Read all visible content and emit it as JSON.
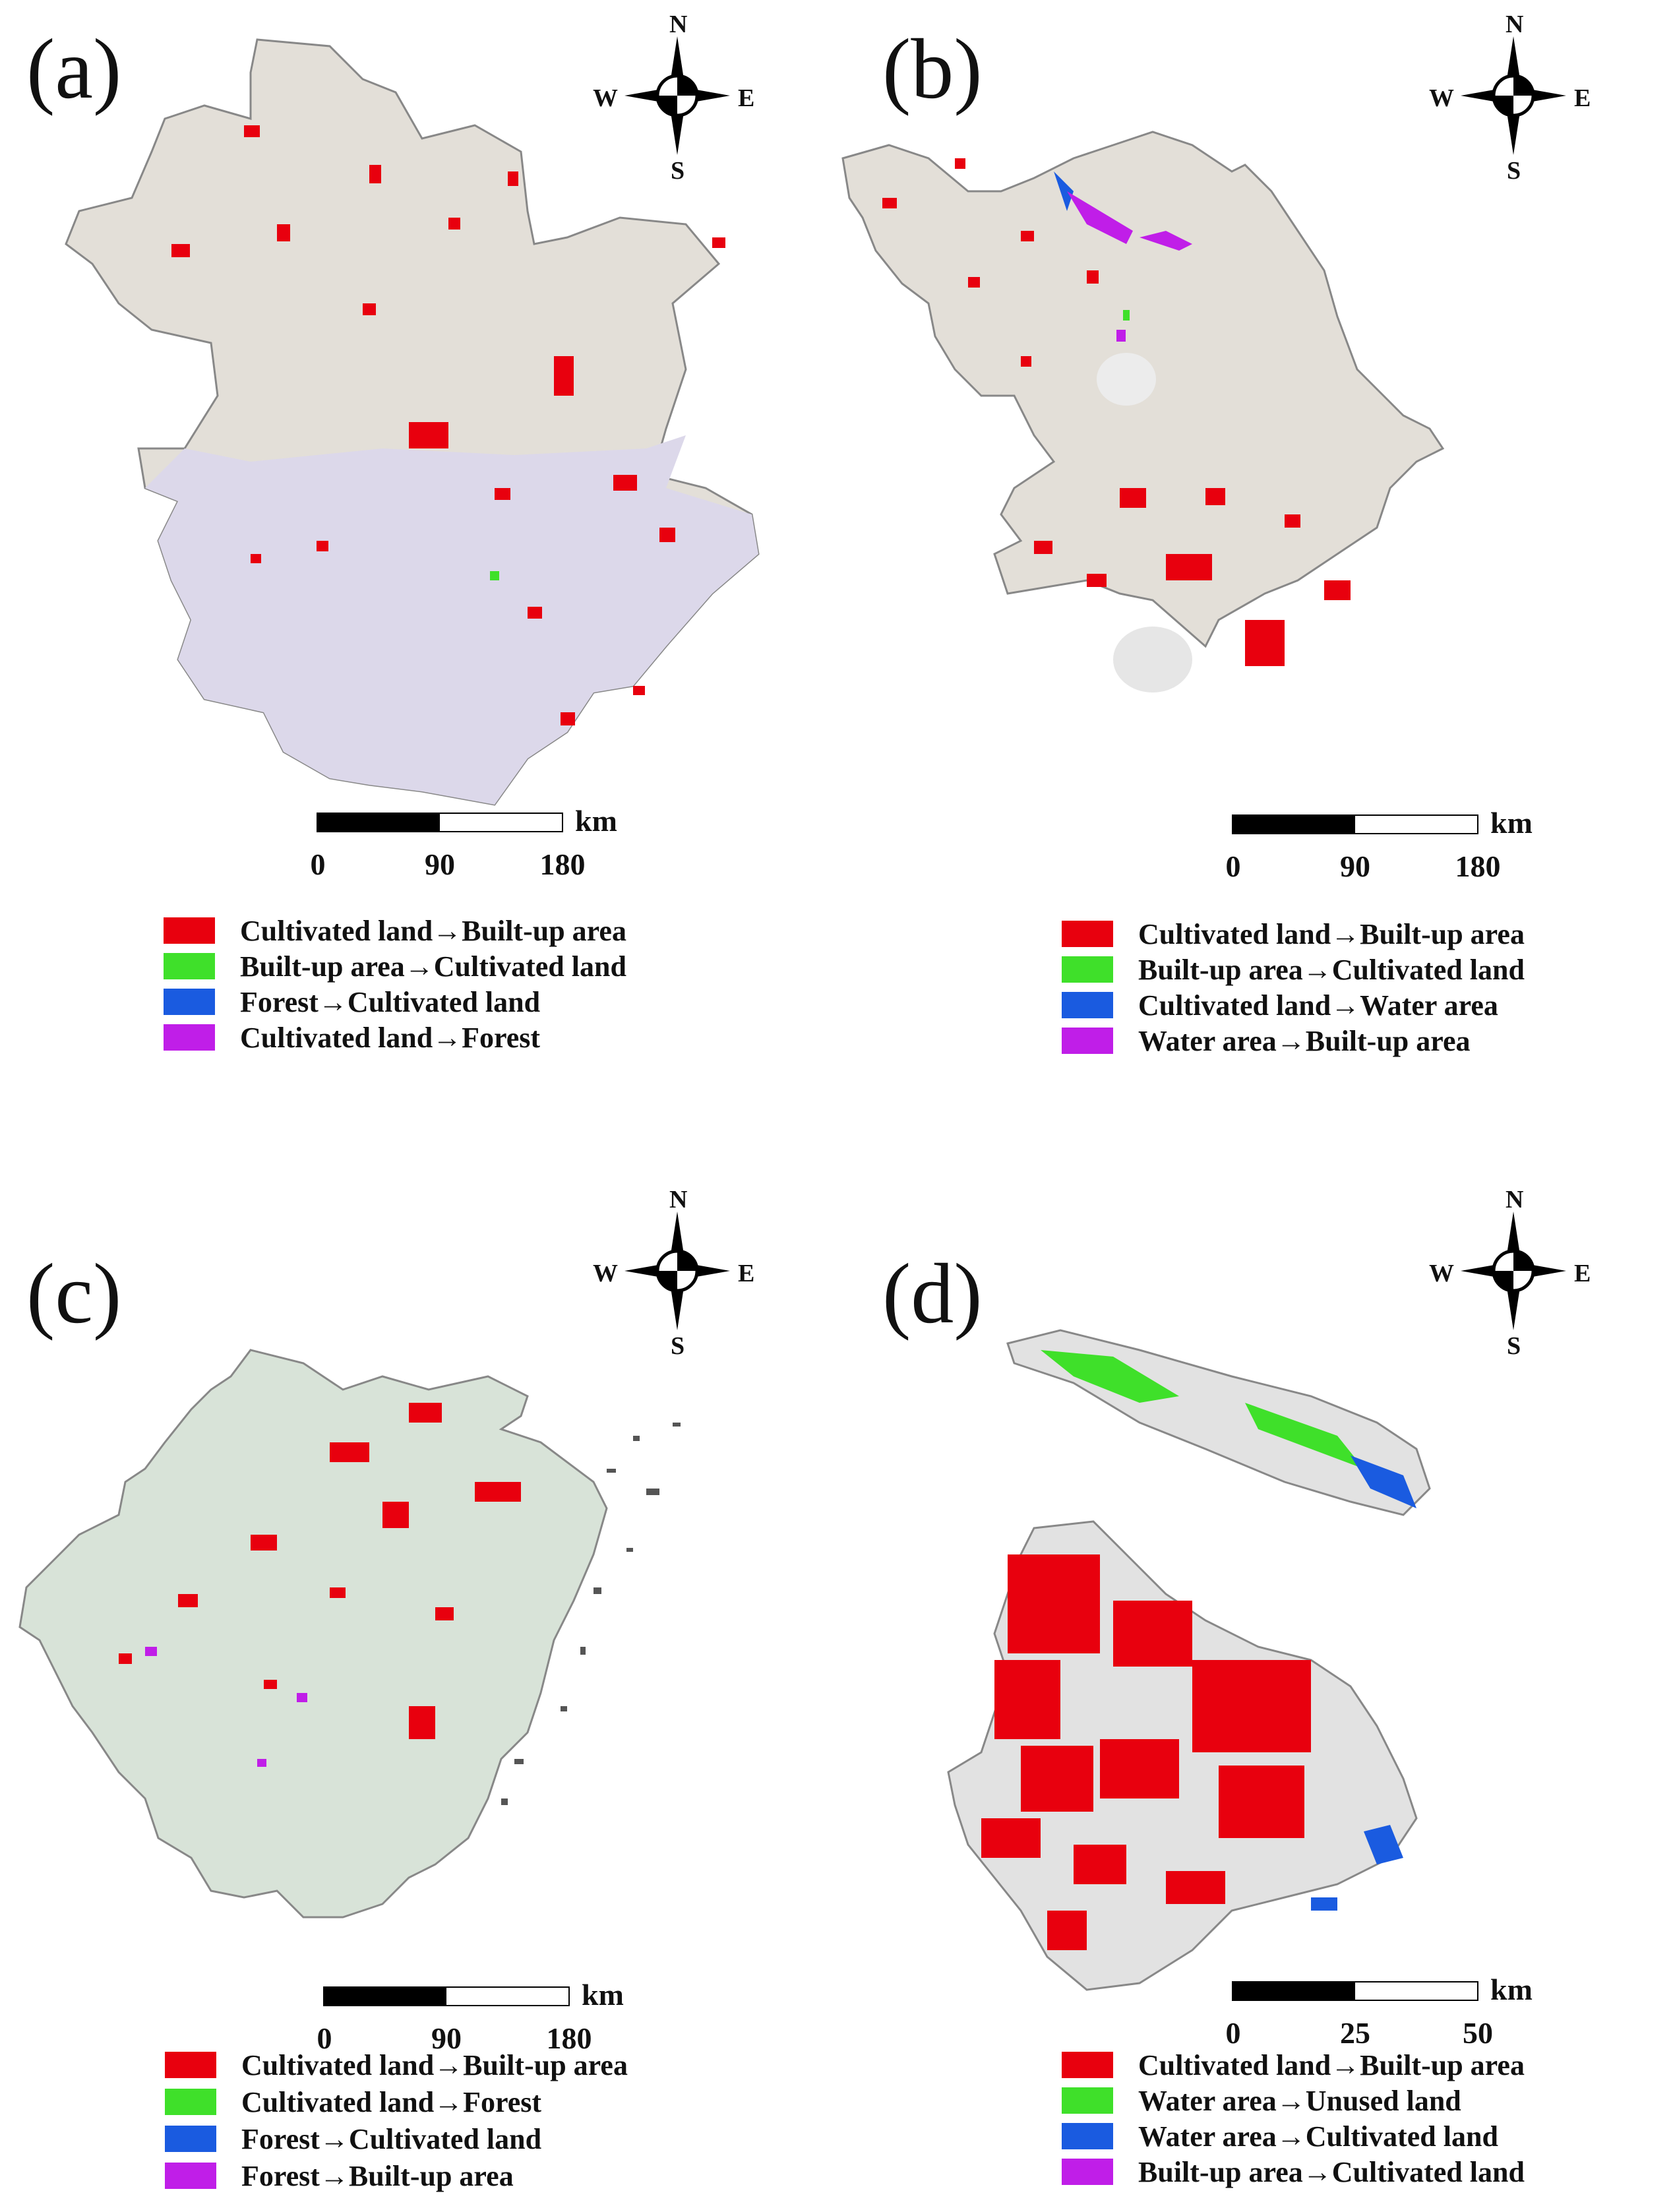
{
  "panels": [
    {
      "label": "(a)",
      "compass": {
        "n": "N",
        "s": "S",
        "e": "E",
        "w": "W"
      },
      "scale": {
        "unit": "km",
        "ticks": [
          "0",
          "90",
          "180"
        ]
      },
      "legend": [
        {
          "label": "Cultivated land→Built-up area",
          "color": "#e8000e"
        },
        {
          "label": "Built-up area→Cultivated land",
          "color": "#3fe02a"
        },
        {
          "label": "Forest→Cultivated land",
          "color": "#1a5be0"
        },
        {
          "label": "Cultivated land→Forest",
          "color": "#c01ee8"
        }
      ]
    },
    {
      "label": "(b)",
      "compass": {
        "n": "N",
        "s": "S",
        "e": "E",
        "w": "W"
      },
      "scale": {
        "unit": "km",
        "ticks": [
          "0",
          "90",
          "180"
        ]
      },
      "legend": [
        {
          "label": "Cultivated land→Built-up area",
          "color": "#e8000e"
        },
        {
          "label": "Built-up area→Cultivated land",
          "color": "#3fe02a"
        },
        {
          "label": "Cultivated land→Water area",
          "color": "#1a5be0"
        },
        {
          "label": "Water area→Built-up area",
          "color": "#c01ee8"
        }
      ]
    },
    {
      "label": "(c)",
      "compass": {
        "n": "N",
        "s": "S",
        "e": "E",
        "w": "W"
      },
      "scale": {
        "unit": "km",
        "ticks": [
          "0",
          "90",
          "180"
        ]
      },
      "legend": [
        {
          "label": "Cultivated land→Built-up area",
          "color": "#e8000e"
        },
        {
          "label": "Cultivated land→Forest",
          "color": "#3fe02a"
        },
        {
          "label": "Forest→Cultivated land",
          "color": "#1a5be0"
        },
        {
          "label": "Forest→Built-up area",
          "color": "#c01ee8"
        }
      ]
    },
    {
      "label": "(d)",
      "compass": {
        "n": "N",
        "s": "S",
        "e": "E",
        "w": "W"
      },
      "scale": {
        "unit": "km",
        "ticks": [
          "0",
          "25",
          "50"
        ]
      },
      "legend": [
        {
          "label": "Cultivated land→Built-up area",
          "color": "#e8000e"
        },
        {
          "label": "Water area→Unused land",
          "color": "#3fe02a"
        },
        {
          "label": "Water area→Cultivated land",
          "color": "#1a5be0"
        },
        {
          "label": "Built-up area→Cultivated land",
          "color": "#c01ee8"
        }
      ]
    }
  ],
  "colors": {
    "base": "#e3dfd8",
    "base_purple": "#dcd8ea",
    "base_green": "#d8e3d8",
    "shanghai_base": "#e2e2e2"
  }
}
